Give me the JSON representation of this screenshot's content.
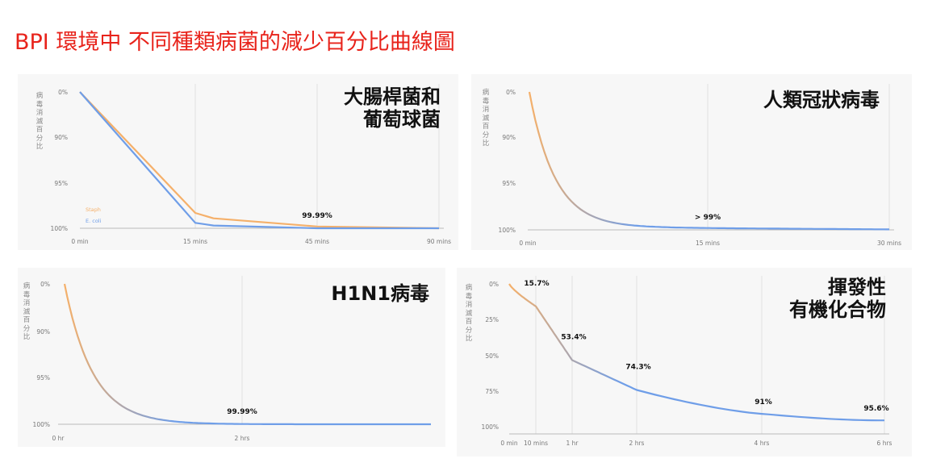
{
  "page": {
    "title": "BPI 環境中 不同種類病菌的減少百分比曲線圖"
  },
  "colors": {
    "orange": "#f5b06a",
    "blue": "#6f9ee8",
    "grid": "#e0e0e0",
    "axis": "#777777",
    "title_red": "#e8231b"
  },
  "chart_data": [
    {
      "type": "line",
      "title_lines": [
        "大腸桿菌和",
        "葡萄球菌"
      ],
      "ylabel": "病毒消滅百分比",
      "x_ticks": [
        "0 min",
        "15 mins",
        "45 mins",
        "90 mins"
      ],
      "y_ticks": [
        "0%",
        "90%",
        "95%",
        "100%"
      ],
      "series": [
        {
          "name": "Staph",
          "color": "#f5b06a",
          "points": [
            [
              0,
              0
            ],
            [
              1,
              0.983
            ],
            [
              1.15,
              0.989
            ],
            [
              2,
              0.998
            ],
            [
              3,
              1.0
            ]
          ]
        },
        {
          "name": "E. coli",
          "color": "#6f9ee8",
          "points": [
            [
              0,
              0
            ],
            [
              1,
              0.994
            ],
            [
              1.15,
              0.997
            ],
            [
              2,
              1.0
            ],
            [
              3,
              1.0
            ]
          ]
        }
      ],
      "annotations": [
        {
          "label": "99.99%",
          "x": 2,
          "y": 1.0
        }
      ]
    },
    {
      "type": "line",
      "title_lines": [
        "人類冠狀病毒"
      ],
      "ylabel": "病毒消滅百分比",
      "x_ticks": [
        "0 min",
        "15 mins",
        "30 mins"
      ],
      "y_ticks": [
        "0%",
        "90%",
        "95%",
        "100%"
      ],
      "series": [
        {
          "name": "",
          "color": "gradient",
          "decay": "exponential",
          "final_level": 0.995
        }
      ],
      "annotations": [
        {
          "label": "> 99%",
          "x": 1,
          "y": 0.99
        }
      ]
    },
    {
      "type": "line",
      "title_lines": [
        "H1N1病毒"
      ],
      "ylabel": "病毒消滅百分比",
      "x_ticks": [
        "0 hr",
        "2 hrs"
      ],
      "y_ticks": [
        "0%",
        "90%",
        "95%",
        "100%"
      ],
      "series": [
        {
          "name": "",
          "color": "gradient",
          "decay": "exponential",
          "final_level": 1.0
        }
      ],
      "annotations": [
        {
          "label": "99.99%",
          "x": 1,
          "y": 0.9999
        }
      ]
    },
    {
      "type": "line",
      "title_lines": [
        "揮發性",
        "有機化合物"
      ],
      "ylabel": "病毒消滅百分比",
      "x_ticks": [
        "0 min",
        "10 mins",
        "1 hr",
        "2 hrs",
        "4 hrs",
        "6 hrs"
      ],
      "y_ticks": [
        "0%",
        "25%",
        "50%",
        "75%",
        "100%"
      ],
      "series": [
        {
          "name": "",
          "color": "gradient",
          "points": [
            [
              "0 min",
              0
            ],
            [
              "10 mins",
              15.7
            ],
            [
              "1 hr",
              53.4
            ],
            [
              "2 hrs",
              74.3
            ],
            [
              "4 hrs",
              91
            ],
            [
              "6 hrs",
              95.6
            ]
          ]
        }
      ],
      "annotations": [
        {
          "label": "15.7%",
          "x": "10 mins",
          "y": 15.7
        },
        {
          "label": "53.4%",
          "x": "1 hr",
          "y": 53.4
        },
        {
          "label": "74.3%",
          "x": "2 hrs",
          "y": 74.3
        },
        {
          "label": "91%",
          "x": "4 hrs",
          "y": 91
        },
        {
          "label": "95.6%",
          "x": "6 hrs",
          "y": 95.6
        }
      ]
    }
  ]
}
